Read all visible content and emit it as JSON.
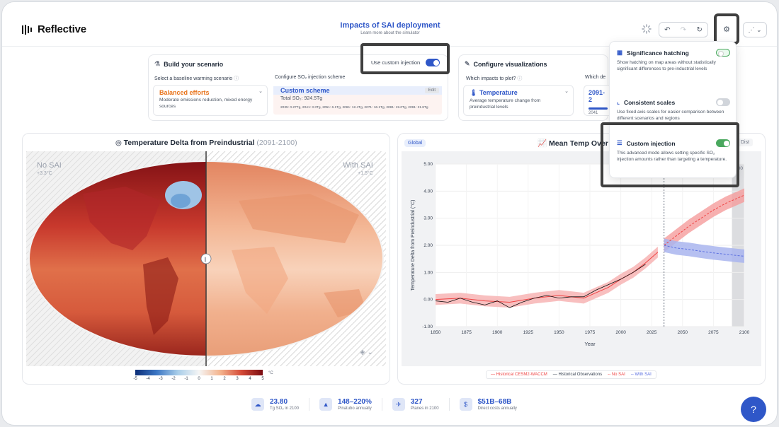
{
  "app": {
    "name": "Reflective"
  },
  "header": {
    "title": "Impacts of SAI deployment",
    "subtitle": "Learn more about the simulator"
  },
  "build": {
    "title": "Build your scenario",
    "baseline_label": "Select a baseline warming scenario",
    "baseline_name": "Balanced efforts",
    "baseline_desc": "Moderate emissions reduction, mixed energy sources",
    "scheme_label": "Configure SO₂ injection scheme",
    "scheme_name": "Custom scheme",
    "edit_label": "Edit",
    "total_label": "Total SO₂: 924.5Tg",
    "years_line": "2035: 0.27Tg, 2041: 3.3Tg, 2051: 6.1Tg, 2061: 12.4Tg, 2071: 16.1Tg, 2081: 19.0Tg, 2091: 21.8Tg",
    "custom_injection_label": "Use custom injection"
  },
  "viz": {
    "title": "Configure visualizations",
    "impacts_label": "Which impacts to plot?",
    "impact_name": "Temperature",
    "impact_desc": "Average temperature change from preindustrial levels",
    "decade_label": "Which de",
    "decade_value": "2091-2",
    "decade_start": "2041"
  },
  "map": {
    "title": "Temperature Delta from Preindustrial",
    "period": "(2091-2100)",
    "left_label": "No SAI",
    "left_value": "+3.3°C",
    "right_label": "With SAI",
    "right_value": "+1.5°C",
    "scale_ticks": [
      "-5",
      "-4",
      "-3",
      "-2",
      "-1",
      "0",
      "1",
      "2",
      "3",
      "4",
      "5"
    ],
    "unit": "°C"
  },
  "chart": {
    "region_badge": "Global",
    "title": "Mean Temp Over T",
    "dist_label": "Dist",
    "marker_label": "2100",
    "legend": [
      "Historical CESM2-WACCM",
      "Historical Observations",
      "No SAI",
      "With SAI"
    ]
  },
  "chart_data": {
    "type": "line",
    "xlabel": "Year",
    "ylabel": "Temperature Delta from Preindustrial (°C)",
    "xlim": [
      1850,
      2100
    ],
    "ylim": [
      -1.0,
      5.0
    ],
    "x_ticks": [
      "1850",
      "1875",
      "1900",
      "1925",
      "1950",
      "1975",
      "2000",
      "2025",
      "2050",
      "2075",
      "2100"
    ],
    "y_ticks": [
      "-1.00",
      "0.00",
      "1.00",
      "2.00",
      "3.00",
      "4.00",
      "5.00"
    ],
    "series": [
      {
        "name": "Historical CESM2-WACCM",
        "x": [
          1850,
          1870,
          1890,
          1910,
          1930,
          1950,
          1960,
          1970,
          1980,
          1990,
          2000,
          2010,
          2020,
          2030
        ],
        "values": [
          0.0,
          0.05,
          -0.05,
          -0.1,
          0.05,
          0.15,
          0.1,
          0.05,
          0.25,
          0.45,
          0.75,
          1.0,
          1.35,
          1.75
        ]
      },
      {
        "name": "Historical Observations",
        "x": [
          1850,
          1860,
          1870,
          1880,
          1890,
          1900,
          1910,
          1920,
          1930,
          1940,
          1950,
          1960,
          1970,
          1980,
          1990,
          2000,
          2010,
          2020
        ],
        "values": [
          -0.05,
          -0.1,
          0.05,
          -0.1,
          -0.2,
          -0.05,
          -0.3,
          -0.1,
          0.05,
          0.15,
          0.05,
          0.1,
          0.1,
          0.35,
          0.55,
          0.75,
          1.0,
          1.3
        ]
      },
      {
        "name": "No SAI",
        "x": [
          2035,
          2045,
          2055,
          2065,
          2075,
          2085,
          2095,
          2100
        ],
        "values": [
          2.0,
          2.35,
          2.7,
          3.0,
          3.3,
          3.55,
          3.75,
          3.85
        ]
      },
      {
        "name": "With SAI",
        "x": [
          2035,
          2045,
          2055,
          2065,
          2075,
          2085,
          2095,
          2100
        ],
        "values": [
          2.0,
          1.9,
          1.85,
          1.78,
          1.72,
          1.67,
          1.62,
          1.6
        ]
      }
    ]
  },
  "settings": {
    "significance": {
      "title": "Significance hatching",
      "desc": "Show hatching on map areas without statistically significant differences to pre-industrial levels"
    },
    "scales": {
      "title": "Consistent scales",
      "desc": "Use fixed axis scales for easier comparison between different scenarios and regions"
    },
    "custom": {
      "title": "Custom injection",
      "desc": "This advanced mode allows setting specific SO₂ injection amounts rather than targeting a temperature."
    }
  },
  "stats": [
    {
      "value": "23.80",
      "label": "Tg SO₂ in 2100",
      "icon": "cloud-icon"
    },
    {
      "value": "148–220%",
      "label": "Pinatubo annually",
      "icon": "volcano-icon"
    },
    {
      "value": "327",
      "label": "Planes in 2100",
      "icon": "plane-icon"
    },
    {
      "value": "$51B–68B",
      "label": "Direct costs annually",
      "icon": "money-icon"
    }
  ],
  "colors": {
    "accent": "#2f57c8",
    "orange": "#e8731a",
    "nosai": "#ef4444",
    "withsai": "#5b6fe0"
  }
}
